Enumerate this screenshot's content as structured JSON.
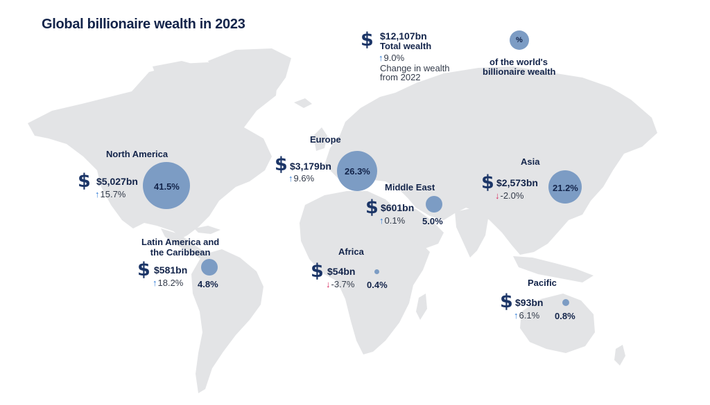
{
  "title": "Global billionaire wealth in 2023",
  "legend": {
    "total_amount": "$12,107bn",
    "total_label": "Total wealth",
    "change_value": "9.0%",
    "change_direction": "up",
    "change_label_line1": "Change in wealth",
    "change_label_line2": "from 2022",
    "bubble_symbol": "%",
    "share_label_line1": "of the world's",
    "share_label_line2": "billionaire wealth",
    "dollar_icon": "dollar-sign-icon"
  },
  "regions": [
    {
      "key": "north_america",
      "name": "North America",
      "wealth": "$5,027bn",
      "change": "15.7%",
      "direction": "up",
      "share": "41.5%"
    },
    {
      "key": "latin_america",
      "name_line1": "Latin America and",
      "name_line2": "the Caribbean",
      "wealth": "$581bn",
      "change": "18.2%",
      "direction": "up",
      "share": "4.8%"
    },
    {
      "key": "europe",
      "name": "Europe",
      "wealth": "$3,179bn",
      "change": "9.6%",
      "direction": "up",
      "share": "26.3%"
    },
    {
      "key": "middle_east",
      "name": "Middle East",
      "wealth": "$601bn",
      "change": "0.1%",
      "direction": "up",
      "share": "5.0%"
    },
    {
      "key": "africa",
      "name": "Africa",
      "wealth": "$54bn",
      "change": "-3.7%",
      "direction": "down",
      "share": "0.4%"
    },
    {
      "key": "asia",
      "name": "Asia",
      "wealth": "$2,573bn",
      "change": "-2.0%",
      "direction": "down",
      "share": "21.2%"
    },
    {
      "key": "pacific",
      "name": "Pacific",
      "wealth": "$93bn",
      "change": "6.1%",
      "direction": "up",
      "share": "0.8%"
    }
  ],
  "colors": {
    "land": "#e3e4e6",
    "bubble": "#7c9cc4",
    "dollar": "#1b3567",
    "arrow_up": "#2f7bd6",
    "arrow_down": "#d9295c"
  }
}
